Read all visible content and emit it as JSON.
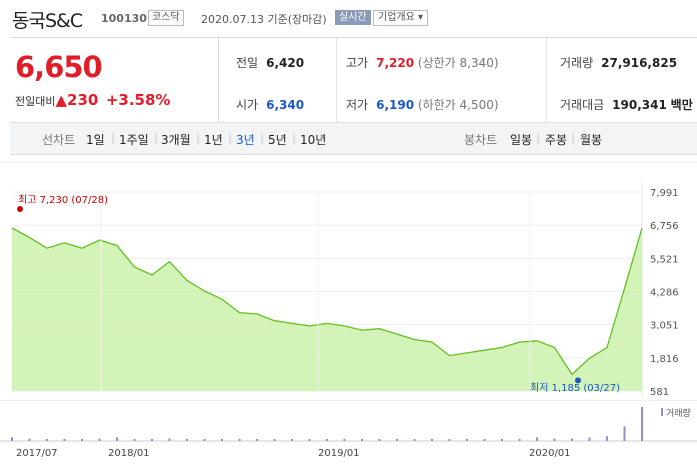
{
  "header": {
    "name": "동국S&C",
    "code": "100130",
    "market": "코스닥",
    "date": "2020.07.13",
    "basis": "기준(장마감)",
    "live_label": "실시간",
    "company_menu": "기업개요"
  },
  "quote": {
    "price": "6,650",
    "change_label": "전일대비",
    "change_symbol": "▲",
    "change": "230",
    "change_pct": "+3.58%",
    "prev_label": "전일",
    "prev": "6,420",
    "high_label": "고가",
    "high": "7,220",
    "upper_limit": "(상한가 8,340)",
    "volume_label": "거래량",
    "volume": "27,916,825",
    "open_label": "시가",
    "open": "6,340",
    "low_label": "저가",
    "low": "6,190",
    "lower_limit": "(하한가 4,500)",
    "amount_label": "거래대금",
    "amount": "190,341",
    "amount_unit": "백만"
  },
  "tabs": {
    "line_label": "선차트",
    "periods": [
      "1일",
      "1주일",
      "3개월",
      "1년",
      "3년",
      "5년",
      "10년"
    ],
    "active_period": "3년",
    "candle_label": "봉차트",
    "candles": [
      "일봉",
      "주봉",
      "월봉"
    ]
  },
  "chart_data": {
    "type": "area",
    "yticks": [
      "7,991",
      "6,756",
      "5,521",
      "4,286",
      "3,051",
      "1,816",
      "581"
    ],
    "xticks": [
      "2017/07",
      "2018/01",
      "2019/01",
      "2020/01"
    ],
    "ylim": [
      581,
      7991
    ],
    "high_annotation": "최고 7,230 (07/28)",
    "low_annotation": "최저 1,185 (03/27)",
    "volume_label": "거래량",
    "colors": {
      "area": "#c9f0a6",
      "line": "#62c01e",
      "high": "#cc0000",
      "low": "#1a59c4",
      "volume": "#a089c4"
    },
    "x": [
      "2017-07",
      "2017-08",
      "2017-09",
      "2017-10",
      "2017-11",
      "2017-12",
      "2018-01",
      "2018-02",
      "2018-03",
      "2018-04",
      "2018-05",
      "2018-06",
      "2018-07",
      "2018-08",
      "2018-09",
      "2018-10",
      "2018-11",
      "2018-12",
      "2019-01",
      "2019-02",
      "2019-03",
      "2019-04",
      "2019-05",
      "2019-06",
      "2019-07",
      "2019-08",
      "2019-09",
      "2019-10",
      "2019-11",
      "2019-12",
      "2020-01",
      "2020-02",
      "2020-03",
      "2020-04",
      "2020-05",
      "2020-06",
      "2020-07"
    ],
    "values": [
      6650,
      6300,
      5900,
      6100,
      5900,
      6200,
      6000,
      5200,
      4900,
      5400,
      4700,
      4300,
      4000,
      3500,
      3450,
      3200,
      3100,
      3000,
      3100,
      3000,
      2850,
      2900,
      2700,
      2500,
      2400,
      1900,
      2000,
      2100,
      2200,
      2400,
      2450,
      2200,
      1200,
      1800,
      2200,
      4400,
      6650
    ],
    "volume": [
      3,
      2,
      1,
      1,
      1,
      2,
      3,
      1,
      1,
      2,
      1,
      1,
      1,
      1,
      1,
      1,
      1,
      1,
      1,
      1,
      1,
      1,
      1,
      1,
      1,
      1,
      1,
      1,
      1,
      1,
      3,
      2,
      2,
      3,
      4,
      12,
      28
    ]
  }
}
